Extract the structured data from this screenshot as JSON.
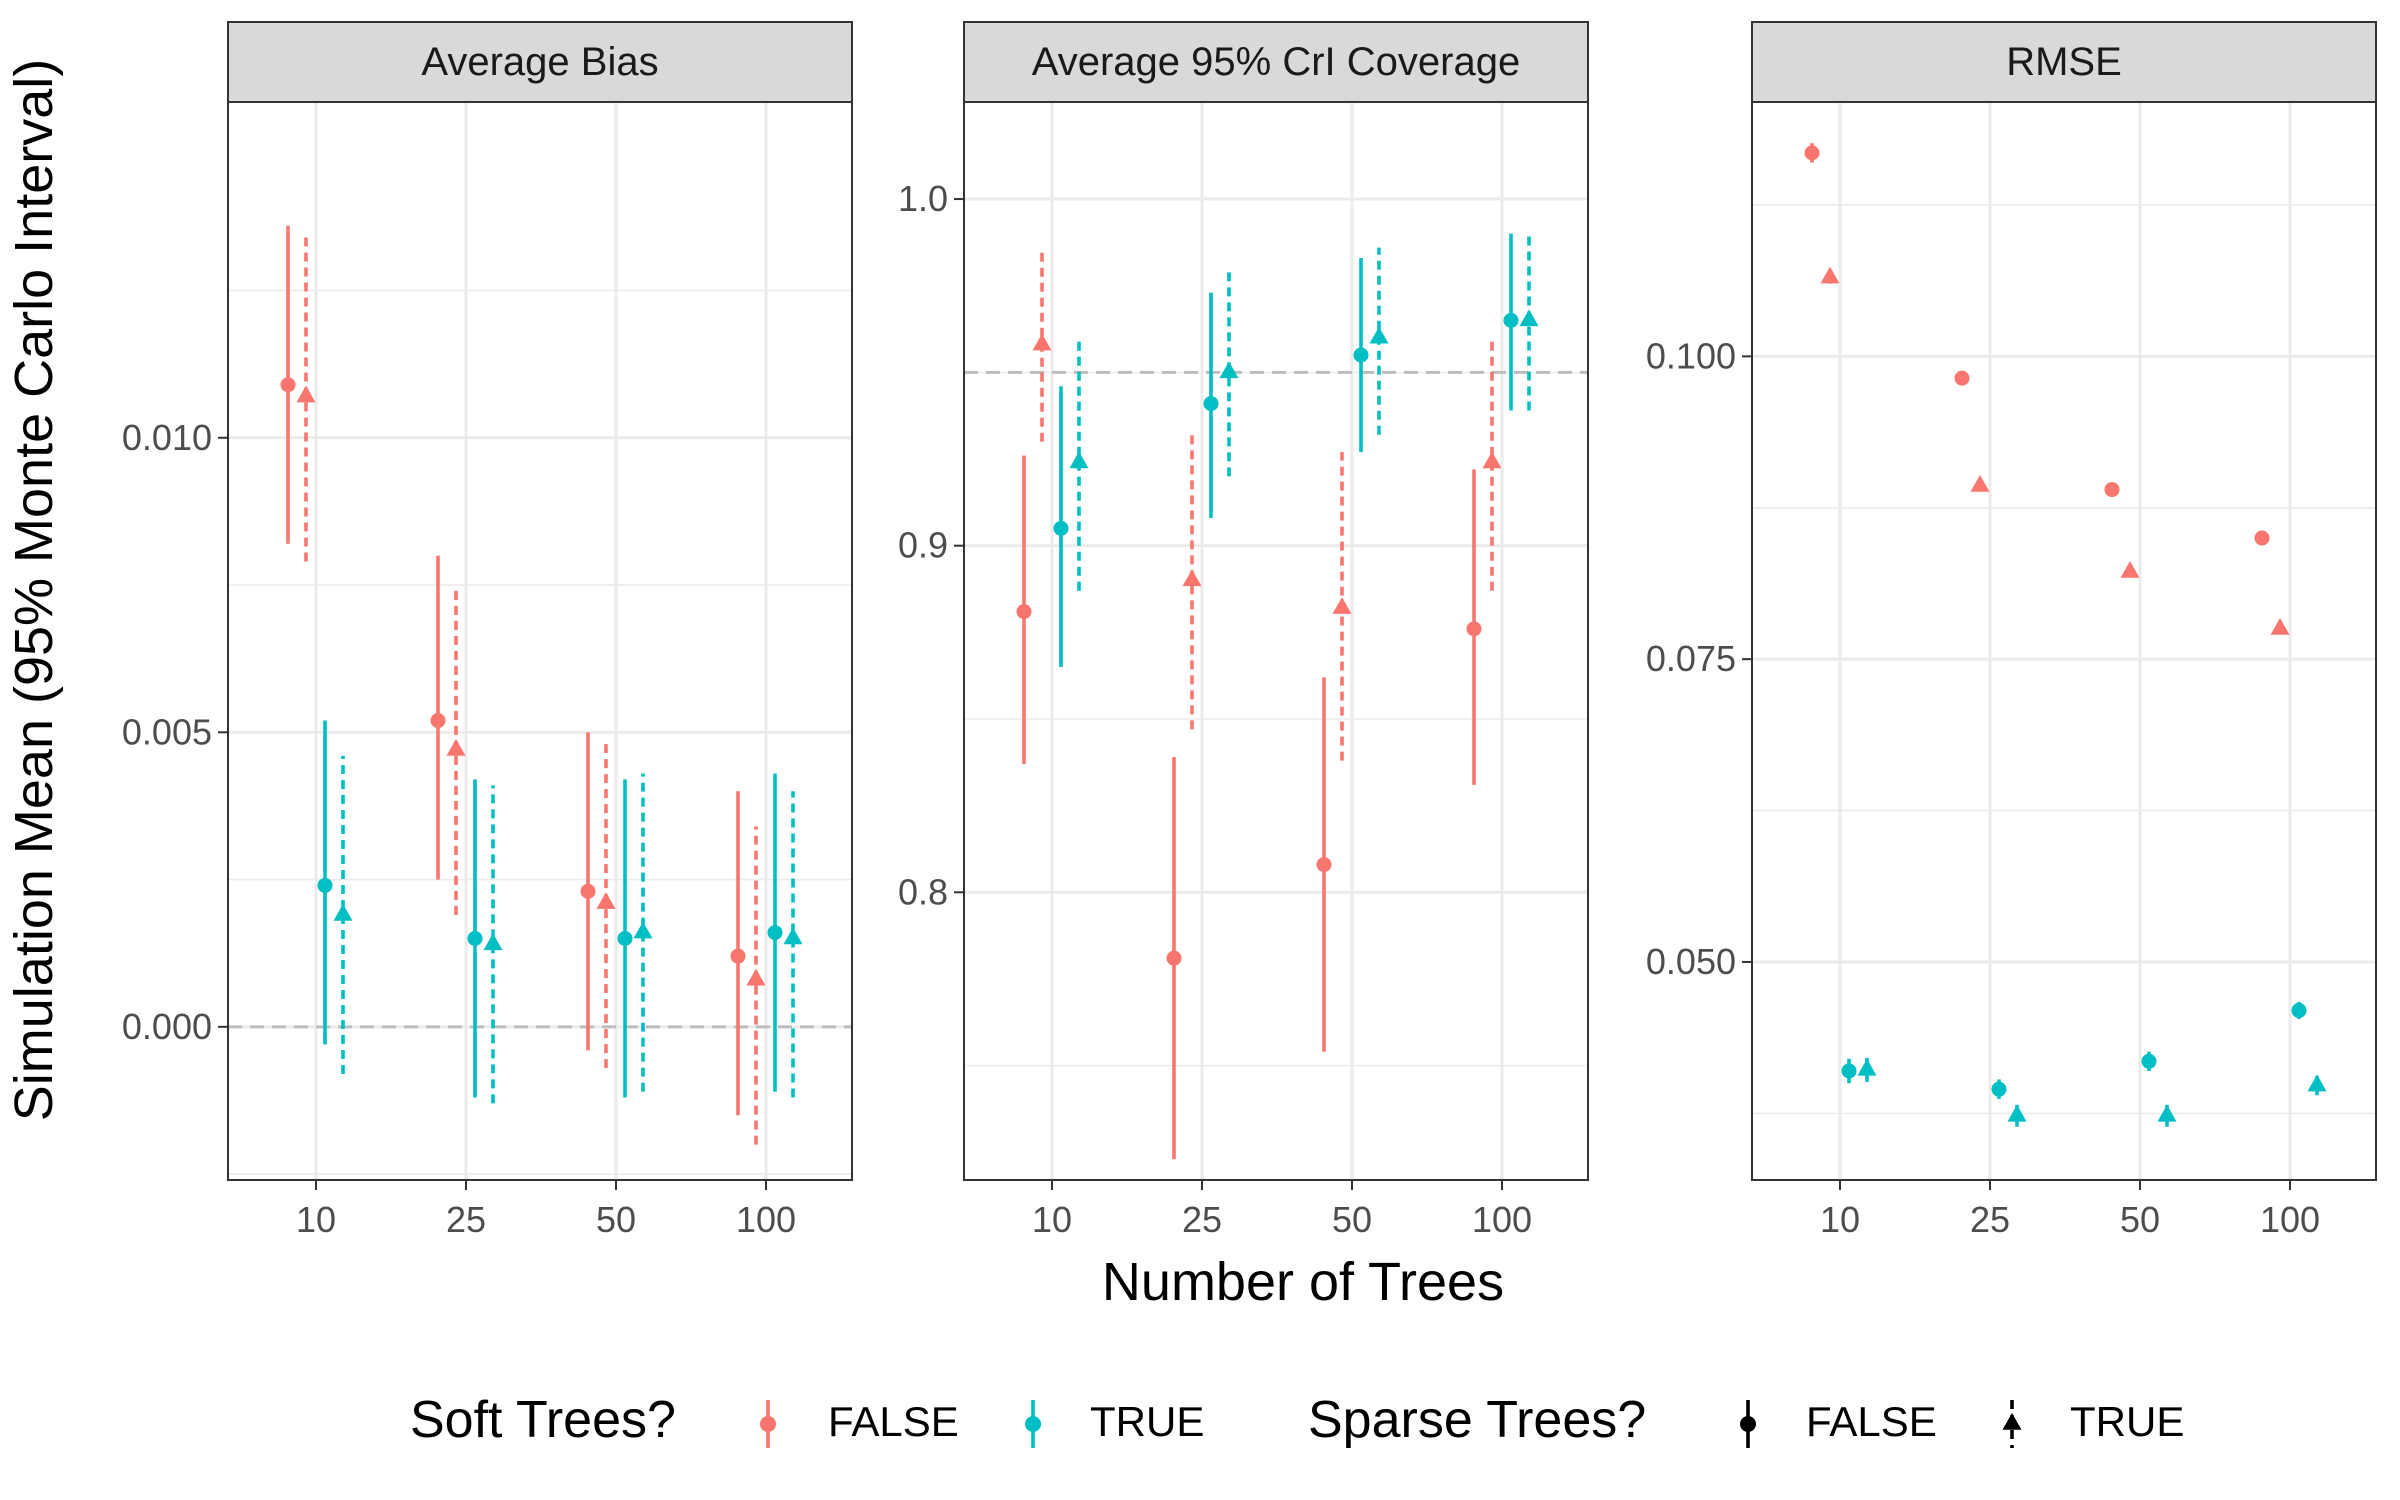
{
  "ylabel": "Simulation Mean (95% Monte Carlo Interval)",
  "xlabel": "Number of Trees",
  "legend": {
    "placement": "bottom",
    "soft": {
      "title": "Soft Trees?",
      "false_label": "FALSE",
      "true_label": "TRUE"
    },
    "sparse": {
      "title": "Sparse Trees?",
      "false_label": "FALSE",
      "true_label": "TRUE"
    }
  },
  "colors": {
    "soft_false": "#F8766D",
    "soft_true": "#00BFC4",
    "reference": "#bdbdbd",
    "grid": "#ebebeb",
    "strip_bg": "#d9d9d9"
  },
  "chart_data": [
    {
      "type": "scatter",
      "title": "Average Bias",
      "categories": [
        "10",
        "25",
        "50",
        "100"
      ],
      "ylim": [
        -0.0026,
        0.0157
      ],
      "yticks": [
        0.0,
        0.005,
        0.01
      ],
      "ytick_labels": [
        "0.000",
        "0.005",
        "0.010"
      ],
      "reference_line": 0.0,
      "grid": true,
      "series": [
        {
          "soft": "FALSE",
          "sparse": "FALSE",
          "values": [
            0.0109,
            0.0052,
            0.0023,
            0.0012
          ],
          "lower": [
            0.0082,
            0.0025,
            -0.0004,
            -0.0015
          ],
          "upper": [
            0.0136,
            0.008,
            0.005,
            0.004
          ]
        },
        {
          "soft": "FALSE",
          "sparse": "TRUE",
          "values": [
            0.0107,
            0.0047,
            0.0021,
            0.0008
          ],
          "lower": [
            0.0079,
            0.0019,
            -0.0007,
            -0.002
          ],
          "upper": [
            0.0134,
            0.0074,
            0.0048,
            0.0034
          ]
        },
        {
          "soft": "TRUE",
          "sparse": "FALSE",
          "values": [
            0.0024,
            0.0015,
            0.0015,
            0.0016
          ],
          "lower": [
            -0.0003,
            -0.0012,
            -0.0012,
            -0.0011
          ],
          "upper": [
            0.0052,
            0.0042,
            0.0042,
            0.0043
          ]
        },
        {
          "soft": "TRUE",
          "sparse": "TRUE",
          "values": [
            0.0019,
            0.0014,
            0.0016,
            0.0015
          ],
          "lower": [
            -0.0008,
            -0.0013,
            -0.0011,
            -0.0012
          ],
          "upper": [
            0.0046,
            0.0041,
            0.0043,
            0.004
          ]
        }
      ]
    },
    {
      "type": "scatter",
      "title": "Average 95% CrI Coverage",
      "categories": [
        "10",
        "25",
        "50",
        "100"
      ],
      "ylim": [
        0.717,
        1.028
      ],
      "yticks": [
        0.8,
        0.9,
        1.0
      ],
      "ytick_labels": [
        "0.8",
        "0.9",
        "1.0"
      ],
      "reference_line": 0.95,
      "grid": true,
      "series": [
        {
          "soft": "FALSE",
          "sparse": "FALSE",
          "values": [
            0.881,
            0.781,
            0.808,
            0.876
          ],
          "lower": [
            0.837,
            0.723,
            0.754,
            0.831
          ],
          "upper": [
            0.926,
            0.839,
            0.862,
            0.922
          ]
        },
        {
          "soft": "FALSE",
          "sparse": "TRUE",
          "values": [
            0.958,
            0.89,
            0.882,
            0.924
          ],
          "lower": [
            0.93,
            0.847,
            0.838,
            0.887
          ],
          "upper": [
            0.985,
            0.932,
            0.927,
            0.96
          ]
        },
        {
          "soft": "TRUE",
          "sparse": "FALSE",
          "values": [
            0.905,
            0.941,
            0.955,
            0.965
          ],
          "lower": [
            0.865,
            0.908,
            0.927,
            0.939
          ],
          "upper": [
            0.946,
            0.973,
            0.983,
            0.99
          ]
        },
        {
          "soft": "TRUE",
          "sparse": "TRUE",
          "values": [
            0.924,
            0.95,
            0.96,
            0.965
          ],
          "lower": [
            0.887,
            0.92,
            0.932,
            0.939
          ],
          "upper": [
            0.96,
            0.979,
            0.986,
            0.99
          ]
        }
      ]
    },
    {
      "type": "scatter",
      "title": "RMSE",
      "categories": [
        "10",
        "25",
        "50",
        "100"
      ],
      "ylim": [
        0.032,
        0.121
      ],
      "yticks": [
        0.05,
        0.075,
        0.1
      ],
      "ytick_labels": [
        "0.050",
        "0.075",
        "0.100"
      ],
      "grid": true,
      "series": [
        {
          "soft": "FALSE",
          "sparse": "FALSE",
          "values": [
            0.1168,
            0.0982,
            0.089,
            0.085
          ],
          "lower": [
            0.116,
            0.0978,
            0.0886,
            0.0846
          ],
          "upper": [
            0.1176,
            0.0986,
            0.0894,
            0.0854
          ]
        },
        {
          "soft": "FALSE",
          "sparse": "TRUE",
          "values": [
            0.1065,
            0.0893,
            0.0822,
            0.0775
          ],
          "lower": [
            0.106,
            0.0889,
            0.0818,
            0.0771
          ],
          "upper": [
            0.107,
            0.0897,
            0.0826,
            0.0779
          ]
        },
        {
          "soft": "TRUE",
          "sparse": "FALSE",
          "values": [
            0.041,
            0.0395,
            0.0418,
            0.046
          ],
          "lower": [
            0.04,
            0.0387,
            0.041,
            0.0453
          ],
          "upper": [
            0.042,
            0.0403,
            0.0426,
            0.0467
          ]
        },
        {
          "soft": "TRUE",
          "sparse": "TRUE",
          "values": [
            0.0411,
            0.0373,
            0.0373,
            0.0398
          ],
          "lower": [
            0.0401,
            0.0364,
            0.0364,
            0.039
          ],
          "upper": [
            0.0421,
            0.0382,
            0.0382,
            0.0406
          ]
        }
      ]
    }
  ]
}
